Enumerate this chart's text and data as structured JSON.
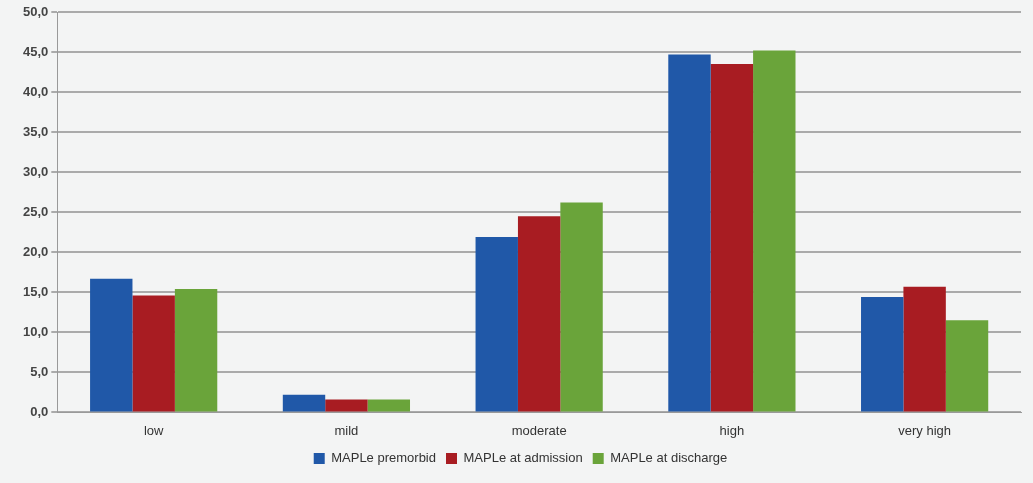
{
  "chart_data": {
    "type": "bar",
    "categories": [
      "low",
      "mild",
      "moderate",
      "high",
      "very high"
    ],
    "series": [
      {
        "name": "MAPLe premorbid",
        "color": "#2058a8",
        "values": [
          16.7,
          2.2,
          21.9,
          44.7,
          14.4
        ]
      },
      {
        "name": "MAPLe at admission",
        "color": "#a81c22",
        "values": [
          14.6,
          1.6,
          24.5,
          43.5,
          15.7
        ]
      },
      {
        "name": "MAPLe at discharge",
        "color": "#6aa43a",
        "values": [
          15.4,
          1.6,
          26.2,
          45.2,
          11.5
        ]
      }
    ],
    "ylim": [
      0,
      50
    ],
    "yticks": [
      {
        "value": 0,
        "label": "0,0"
      },
      {
        "value": 5,
        "label": "5,0"
      },
      {
        "value": 10,
        "label": "10,0"
      },
      {
        "value": 15,
        "label": "15,0"
      },
      {
        "value": 20,
        "label": "20,0"
      },
      {
        "value": 25,
        "label": "25,0"
      },
      {
        "value": 30,
        "label": "30,0"
      },
      {
        "value": 35,
        "label": "35,0"
      },
      {
        "value": 40,
        "label": "40,0"
      },
      {
        "value": 45,
        "label": "45,0"
      },
      {
        "value": 50,
        "label": "50,0"
      }
    ],
    "grid": "y",
    "legend": "bottom"
  }
}
